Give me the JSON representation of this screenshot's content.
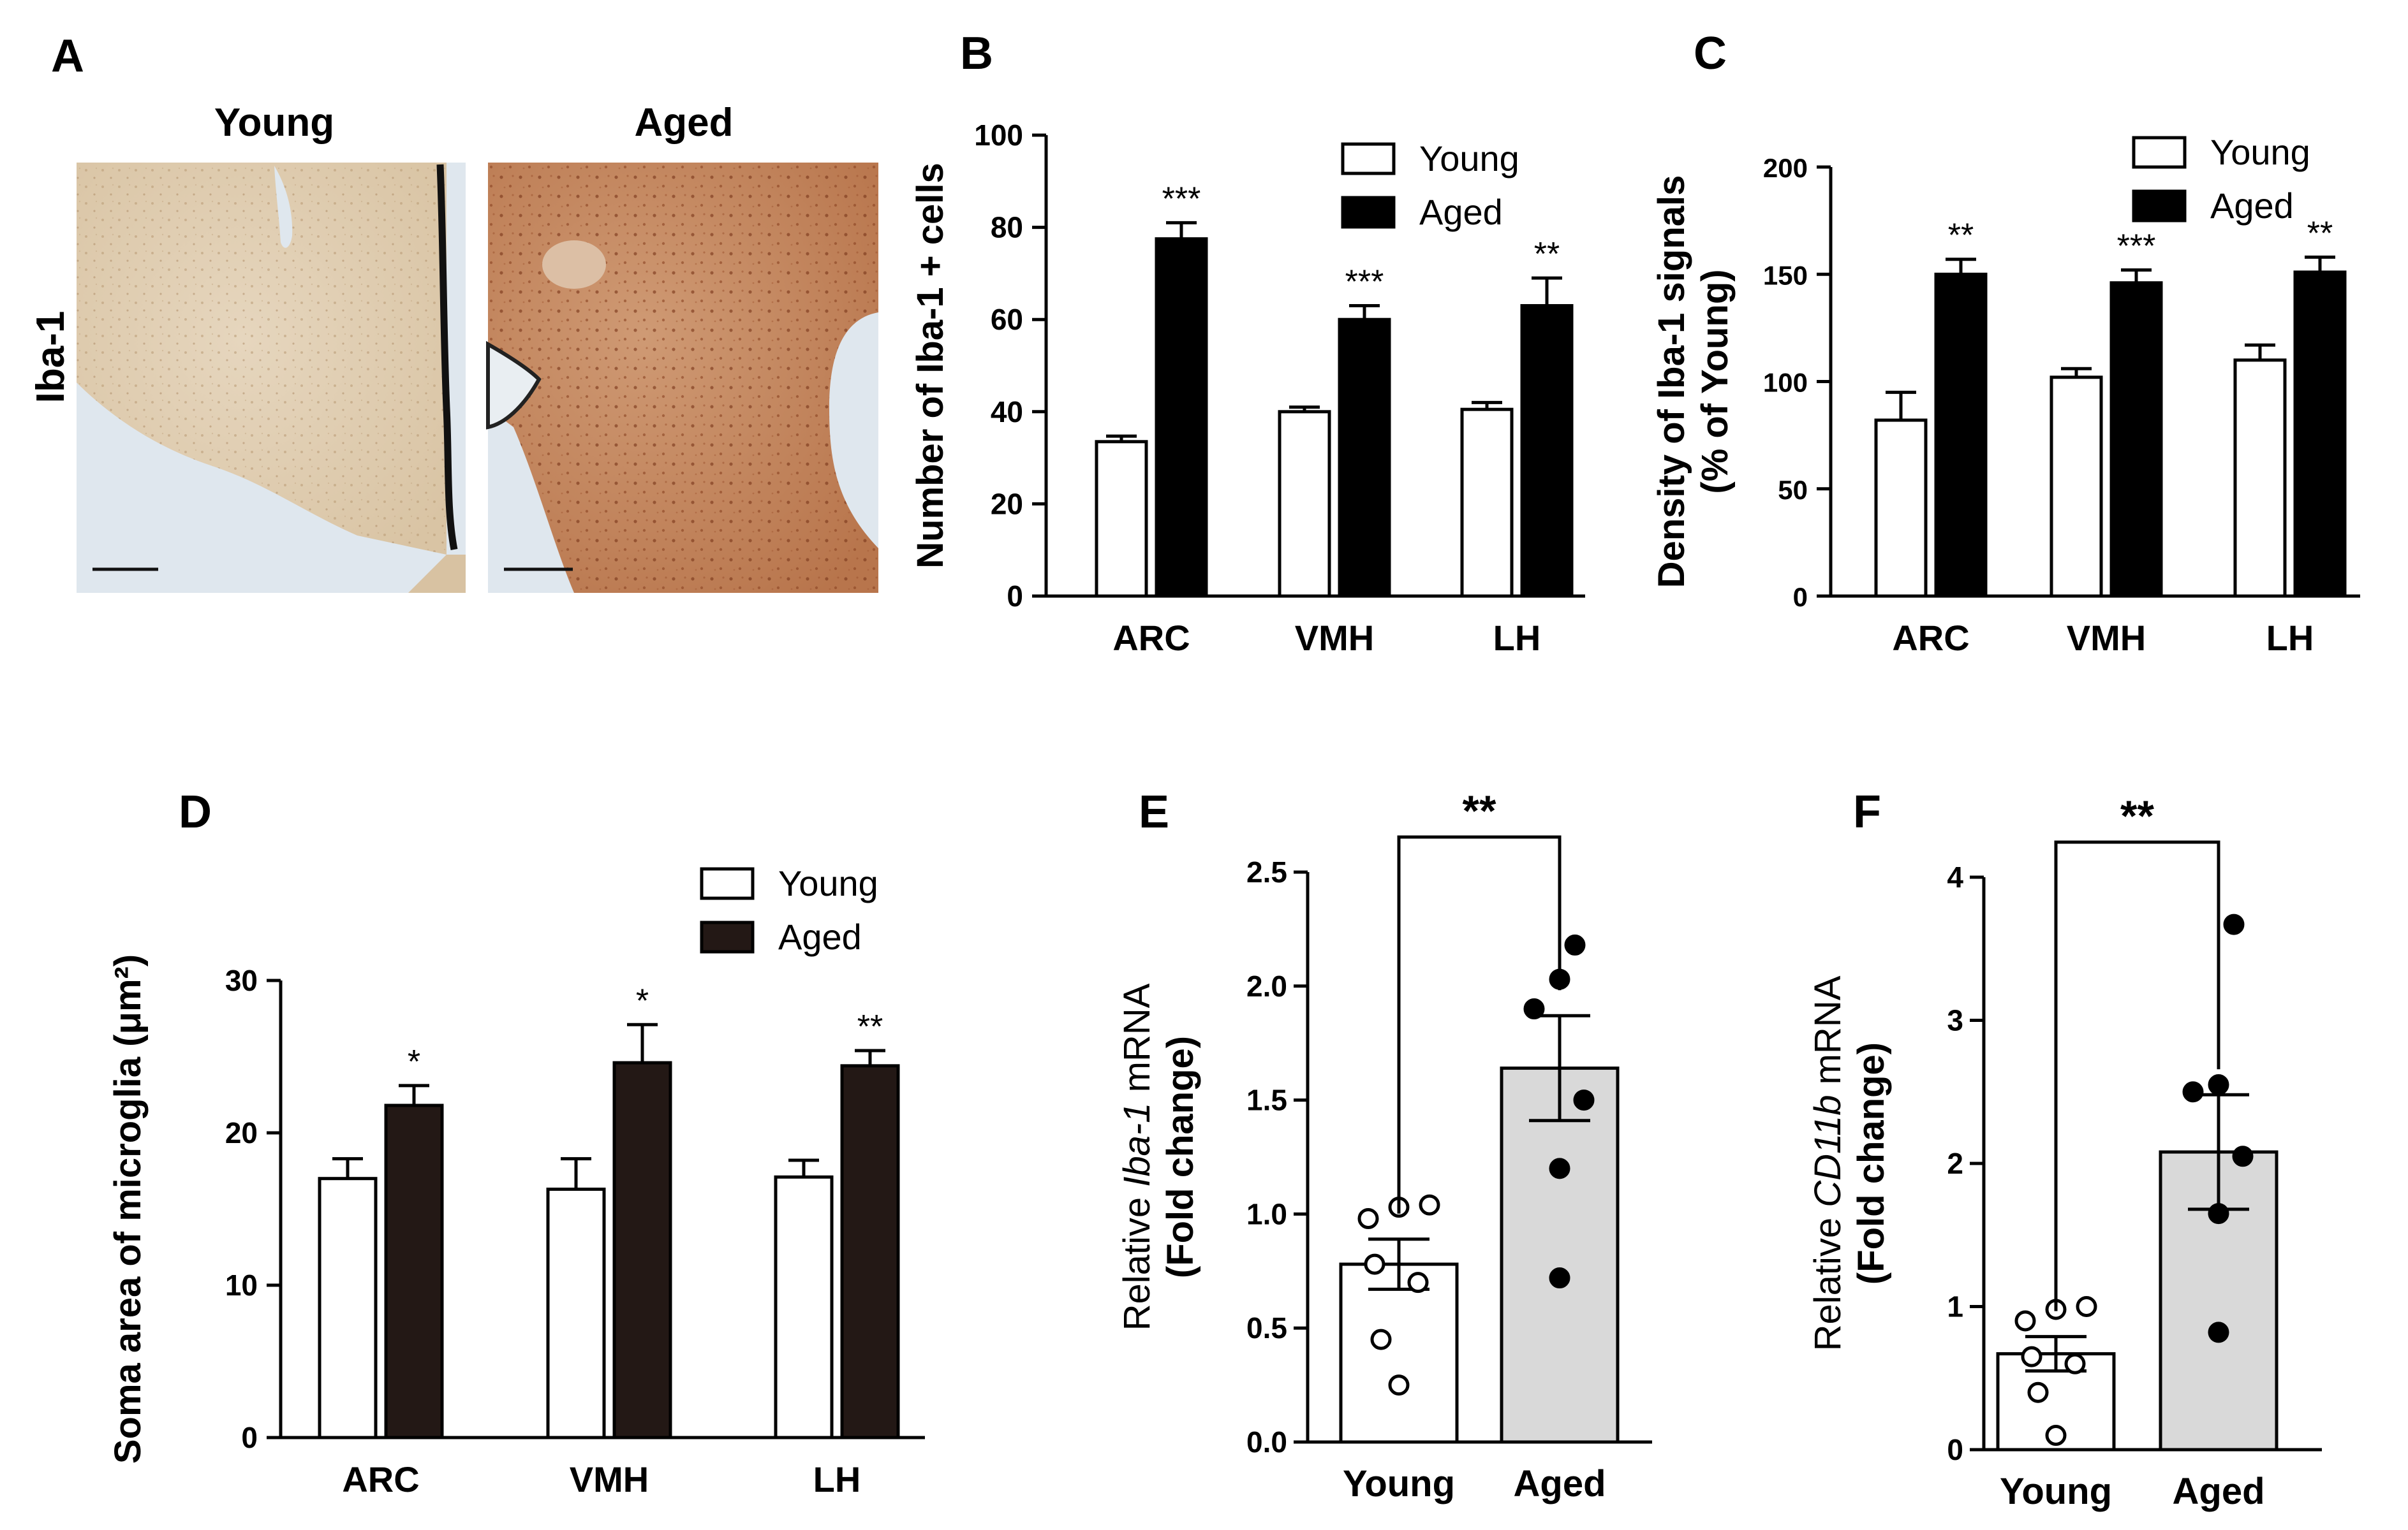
{
  "colors": {
    "young_fill": "#ffffff",
    "aged_fill": "#000000",
    "aged_fill_d": "#231815",
    "aged_fill_ef": "#d9d9d9",
    "axis": "#000000",
    "tissue_young": "#e2d0b6",
    "tissue_aged": "#c98a62",
    "background_img": "#dfe7ee"
  },
  "panel_a": {
    "letter": "A",
    "young_label": "Young",
    "aged_label": "Aged",
    "row_label": "Iba-1"
  },
  "chart_data": [
    {
      "id": "B",
      "type": "bar",
      "letter": "B",
      "ylabel": "Number of Iba-1 + cells",
      "ylim": [
        0,
        100
      ],
      "yticks": [
        0,
        20,
        40,
        60,
        80,
        100
      ],
      "ytick_labels": [
        "0",
        "20",
        "40",
        "60",
        "80",
        "100"
      ],
      "categories": [
        "ARC",
        "VMH",
        "LH"
      ],
      "legend": [
        "Young",
        "Aged"
      ],
      "series": [
        {
          "name": "Young",
          "values": [
            33.5,
            40,
            40.5
          ],
          "errors": [
            1.2,
            1,
            1.5
          ]
        },
        {
          "name": "Aged",
          "values": [
            77.5,
            60,
            63
          ],
          "errors": [
            3.5,
            3,
            6
          ]
        }
      ],
      "annotations": [
        "***",
        "***",
        "**"
      ]
    },
    {
      "id": "C",
      "type": "bar",
      "letter": "C",
      "ylabel": "Density of Iba-1 signals",
      "ylabel2": "(% of Young)",
      "ylim": [
        0,
        200
      ],
      "yticks": [
        0,
        50,
        100,
        150,
        200
      ],
      "ytick_labels": [
        "0",
        "50",
        "100",
        "150",
        "200"
      ],
      "categories": [
        "ARC",
        "VMH",
        "LH"
      ],
      "legend": [
        "Young",
        "Aged"
      ],
      "series": [
        {
          "name": "Young",
          "values": [
            82,
            102,
            110
          ],
          "errors": [
            13,
            4,
            7
          ]
        },
        {
          "name": "Aged",
          "values": [
            150,
            146,
            151
          ],
          "errors": [
            7,
            6,
            7
          ]
        }
      ],
      "annotations": [
        "**",
        "***",
        "**"
      ]
    },
    {
      "id": "D",
      "type": "bar",
      "letter": "D",
      "ylabel": "Soma area of microglia (μm²)",
      "ylim": [
        0,
        30
      ],
      "yticks": [
        0,
        10,
        20,
        30
      ],
      "ytick_labels": [
        "0",
        "10",
        "20",
        "30"
      ],
      "categories": [
        "ARC",
        "VMH",
        "LH"
      ],
      "legend": [
        "Young",
        "Aged"
      ],
      "series": [
        {
          "name": "Young",
          "values": [
            17,
            16.3,
            17.1
          ],
          "errors": [
            1.3,
            2,
            1.1
          ]
        },
        {
          "name": "Aged",
          "values": [
            21.8,
            24.6,
            24.4
          ],
          "errors": [
            1.3,
            2.5,
            1
          ]
        }
      ],
      "annotations": [
        "*",
        "*",
        "**"
      ]
    },
    {
      "id": "E",
      "type": "bar",
      "letter": "E",
      "ylabel_pre": "Relative ",
      "ylabel_gene": "Iba-1",
      "ylabel_post": " mRNA",
      "ylabel2": "(Fold change)",
      "ylim": [
        0,
        2.5
      ],
      "yticks": [
        0,
        0.5,
        1,
        1.5,
        2,
        2.5
      ],
      "ytick_labels": [
        "0.0",
        "0.5",
        "1.0",
        "1.5",
        "2.0",
        "2.5"
      ],
      "categories": [
        "Young",
        "Aged"
      ],
      "values": [
        0.78,
        1.64
      ],
      "errors": [
        0.11,
        0.23
      ],
      "points": [
        [
          0.25,
          0.45,
          0.7,
          0.78,
          0.98,
          1.03,
          1.04
        ],
        [
          0.72,
          1.2,
          1.5,
          1.9,
          2.03,
          2.18
        ]
      ],
      "significance": "**"
    },
    {
      "id": "F",
      "type": "bar",
      "letter": "F",
      "ylabel_pre": "Relative ",
      "ylabel_gene": "CD11b",
      "ylabel_post": " mRNA",
      "ylabel2": "(Fold change)",
      "ylim": [
        0,
        4
      ],
      "yticks": [
        0,
        1,
        2,
        3,
        4
      ],
      "ytick_labels": [
        "0",
        "1",
        "2",
        "3",
        "4"
      ],
      "categories": [
        "Young",
        "Aged"
      ],
      "values": [
        0.67,
        2.08
      ],
      "errors": [
        0.12,
        0.4
      ],
      "points": [
        [
          0.1,
          0.4,
          0.6,
          0.65,
          0.9,
          0.98,
          1.0
        ],
        [
          0.82,
          1.65,
          2.05,
          2.5,
          2.55,
          3.67
        ]
      ],
      "significance": "**"
    }
  ]
}
